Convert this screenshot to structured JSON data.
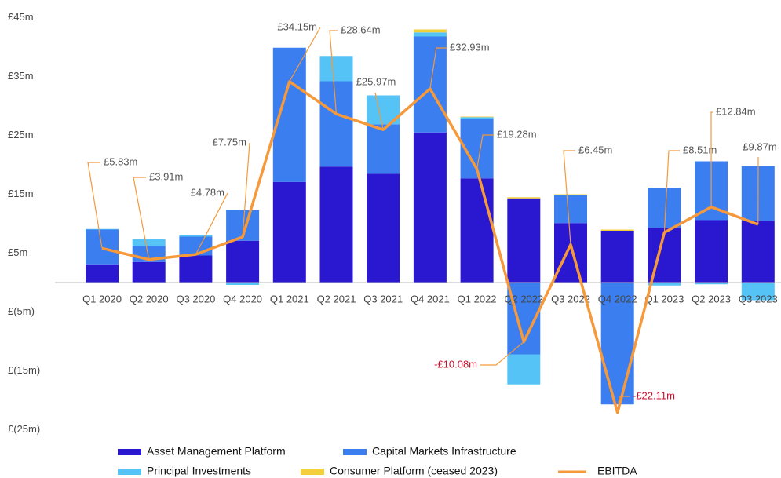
{
  "chart_data": {
    "type": "bar",
    "stacked": true,
    "categories": [
      "Q1 2020",
      "Q2 2020",
      "Q3 2020",
      "Q4 2020",
      "Q1 2021",
      "Q2 2021",
      "Q3 2021",
      "Q4 2021",
      "Q1 2022",
      "Q2 2022",
      "Q3 2022",
      "Q4 2022",
      "Q1 2023",
      "Q2 2023",
      "Q3 2023"
    ],
    "ylim": [
      -27,
      48
    ],
    "yticks": [
      {
        "value": 45,
        "label": "£45m"
      },
      {
        "value": 35,
        "label": "£35m"
      },
      {
        "value": 25,
        "label": "£25m"
      },
      {
        "value": 15,
        "label": "£15m"
      },
      {
        "value": 5,
        "label": "£5m"
      },
      {
        "value": -5,
        "label": "£(5m)"
      },
      {
        "value": -15,
        "label": "£(15m)"
      },
      {
        "value": -25,
        "label": "£(25m)"
      }
    ],
    "grid": false,
    "series": [
      {
        "name": "Asset Management Platform",
        "color": "#2a17d0",
        "values": [
          3.1,
          3.5,
          4.6,
          7.1,
          17.1,
          19.7,
          18.5,
          25.5,
          17.7,
          14.3,
          10.1,
          8.8,
          9.3,
          10.6,
          10.5
        ]
      },
      {
        "name": "Capital Markets Infrastructure",
        "color": "#3b7ef0",
        "values": [
          5.9,
          2.7,
          3.2,
          5.2,
          22.8,
          14.5,
          8.4,
          16.3,
          10.1,
          -12.2,
          4.8,
          -20.7,
          6.8,
          10.0,
          9.3
        ]
      },
      {
        "name": "Principal Investments",
        "color": "#55c3f6",
        "values": [
          0.1,
          1.2,
          0.3,
          -0.4,
          0,
          4.3,
          4.9,
          0.7,
          0.3,
          -5.1,
          0,
          0,
          -0.5,
          -0.3,
          -3.0
        ]
      },
      {
        "name": "Consumer Platform (ceased 2023)",
        "color": "#f3cf3c",
        "values": [
          0,
          0,
          0,
          0,
          0,
          0,
          0,
          0.5,
          0.1,
          0.2,
          0.1,
          0.2,
          0,
          0,
          0
        ]
      },
      {
        "name": "EBITDA",
        "type": "line",
        "color": "#f5993a",
        "values": [
          5.83,
          3.91,
          4.78,
          7.75,
          34.15,
          28.64,
          25.97,
          32.93,
          19.28,
          -10.08,
          6.45,
          -22.11,
          8.51,
          12.84,
          9.87
        ],
        "value_labels": [
          "£5.83m",
          "£3.91m",
          "£4.78m",
          "£7.75m",
          "£34.15m",
          "£28.64m",
          "£25.97m",
          "£32.93m",
          "£19.28m",
          "-£10.08m",
          "£6.45m",
          "-£22.11m",
          "£8.51m",
          "£12.84m",
          "£9.87m"
        ]
      }
    ]
  }
}
